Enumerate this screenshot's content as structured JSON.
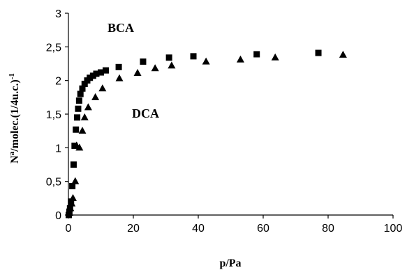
{
  "chart_data": {
    "type": "scatter",
    "xlabel": "p/Pa",
    "ylabel": "Na/molec.(1/4u.c.)-1",
    "ylabel_parts": {
      "n": "N",
      "sup1": "a",
      "mid": "/molec.(1/4u.c.)",
      "sup2": "-1"
    },
    "xlim": [
      0,
      100
    ],
    "ylim": [
      0,
      3
    ],
    "x_ticks": [
      "0",
      "20",
      "40",
      "60",
      "80",
      "100"
    ],
    "x_tick_values": [
      0,
      20,
      40,
      60,
      80,
      100
    ],
    "y_ticks": [
      "0",
      "0,5",
      "1",
      "1,5",
      "2",
      "2,5",
      "3"
    ],
    "y_tick_values": [
      0,
      0.5,
      1,
      1.5,
      2,
      2.5,
      3
    ],
    "grid": false,
    "legend": "none",
    "series": [
      {
        "name": "BCA",
        "marker": "square",
        "color": "#000000",
        "points": [
          [
            0.1,
            0.0
          ],
          [
            0.3,
            0.05
          ],
          [
            0.5,
            0.1
          ],
          [
            0.8,
            0.2
          ],
          [
            1.2,
            0.43
          ],
          [
            1.6,
            0.75
          ],
          [
            1.9,
            1.03
          ],
          [
            2.3,
            1.27
          ],
          [
            2.7,
            1.45
          ],
          [
            3.0,
            1.58
          ],
          [
            3.3,
            1.7
          ],
          [
            3.7,
            1.8
          ],
          [
            4.3,
            1.88
          ],
          [
            5.0,
            1.95
          ],
          [
            5.8,
            2.0
          ],
          [
            6.6,
            2.04
          ],
          [
            7.6,
            2.07
          ],
          [
            8.6,
            2.1
          ],
          [
            10.0,
            2.12
          ],
          [
            11.5,
            2.15
          ],
          [
            15.5,
            2.2
          ],
          [
            23.0,
            2.28
          ],
          [
            31.0,
            2.34
          ],
          [
            38.5,
            2.36
          ],
          [
            58.0,
            2.39
          ],
          [
            77.0,
            2.41
          ]
        ]
      },
      {
        "name": "DCA",
        "marker": "triangle",
        "color": "#000000",
        "points": [
          [
            0.3,
            0.03
          ],
          [
            0.6,
            0.1
          ],
          [
            1.0,
            0.17
          ],
          [
            1.4,
            0.25
          ],
          [
            2.1,
            0.5
          ],
          [
            2.5,
            1.03
          ],
          [
            3.4,
            1.0
          ],
          [
            4.3,
            1.25
          ],
          [
            5.0,
            1.45
          ],
          [
            6.1,
            1.6
          ],
          [
            8.3,
            1.75
          ],
          [
            10.5,
            1.88
          ],
          [
            15.7,
            2.03
          ],
          [
            21.3,
            2.11
          ],
          [
            26.7,
            2.18
          ],
          [
            31.8,
            2.22
          ],
          [
            42.4,
            2.28
          ],
          [
            53.0,
            2.31
          ],
          [
            63.7,
            2.34
          ],
          [
            84.6,
            2.38
          ]
        ]
      }
    ],
    "annotations": [
      "BCA",
      "DCA"
    ]
  }
}
